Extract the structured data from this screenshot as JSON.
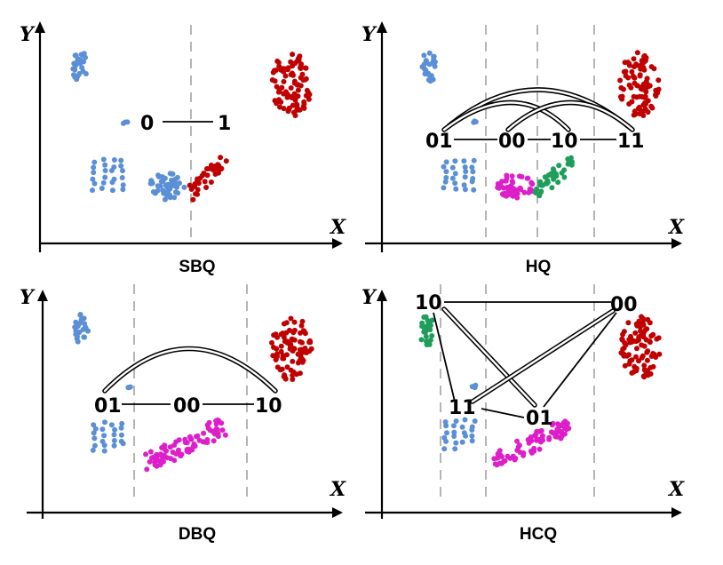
{
  "colors": {
    "blue": "#5b8fd6",
    "red": "#c00000",
    "green": "#1e9e5a",
    "magenta": "#dd1fc9",
    "axis": "#000000",
    "dashed": "#b5b5b5"
  },
  "axis_labels": {
    "x": "X",
    "y": "Y"
  },
  "panels": [
    {
      "id": "sbq",
      "title": "SBQ",
      "codes": [
        "0",
        "1"
      ]
    },
    {
      "id": "hq",
      "title": "HQ",
      "codes": [
        "01",
        "00",
        "10",
        "11"
      ]
    },
    {
      "id": "dbq",
      "title": "DBQ",
      "codes": [
        "01",
        "00",
        "10"
      ]
    },
    {
      "id": "hcq",
      "title": "HCQ",
      "codes": [
        "10",
        "00",
        "11",
        "01"
      ]
    }
  ]
}
